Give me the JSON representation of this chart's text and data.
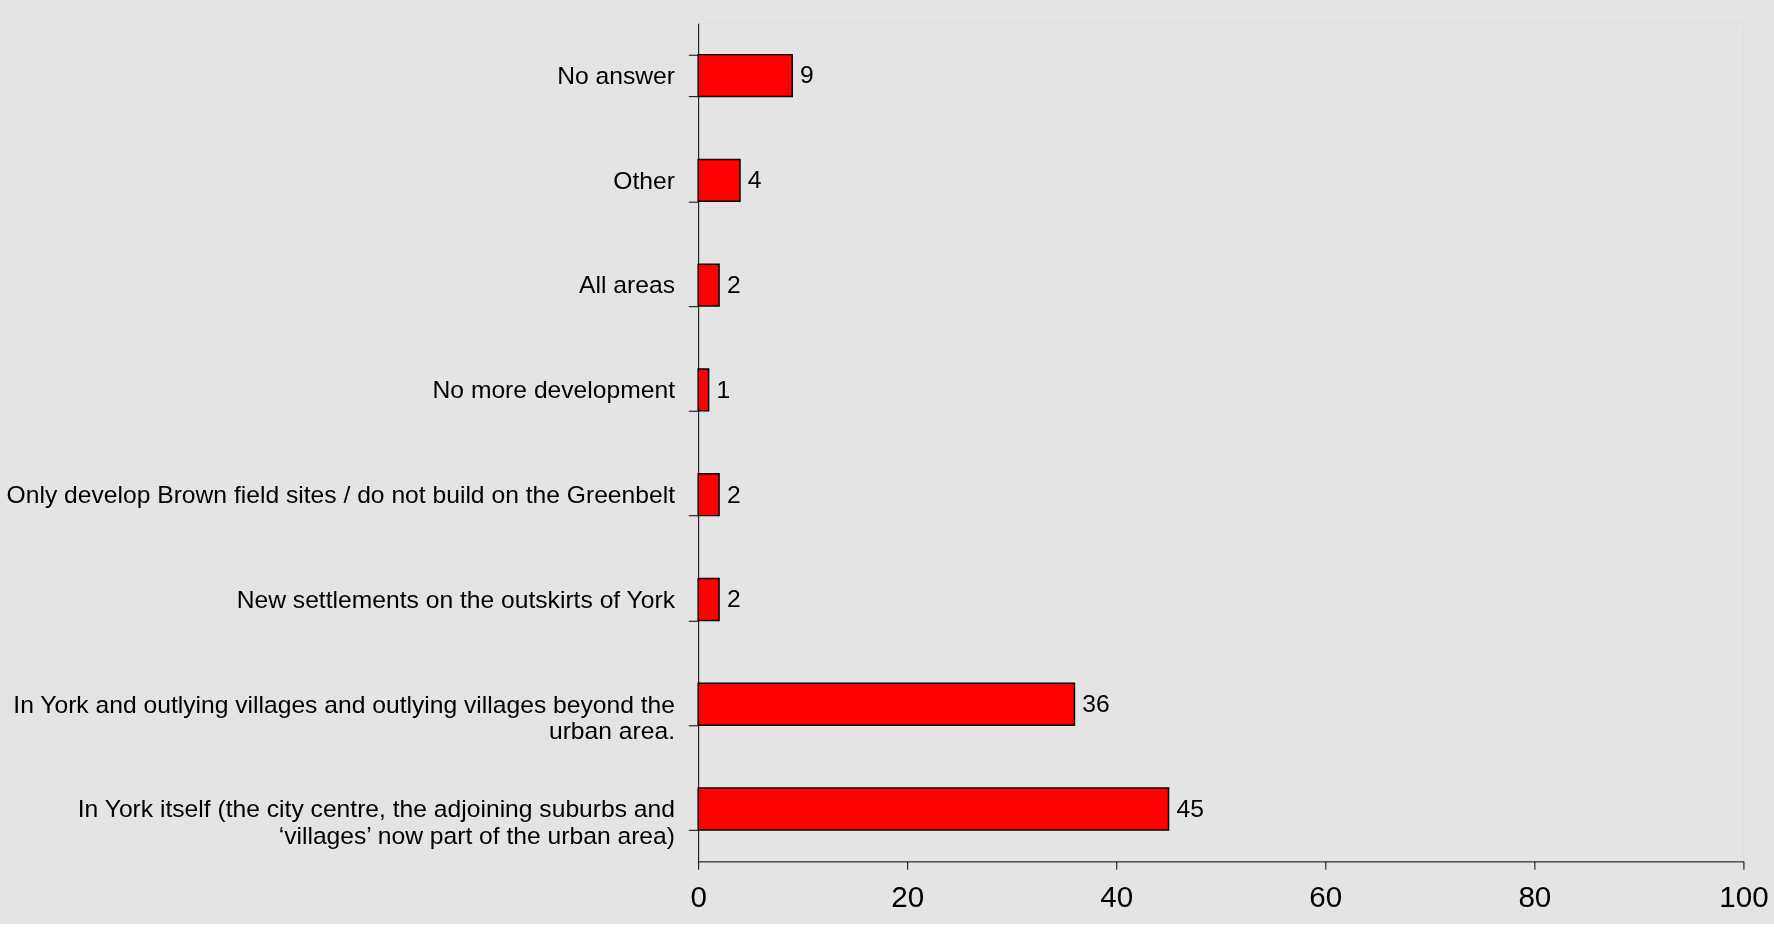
{
  "chart_data": {
    "type": "bar",
    "orientation": "horizontal",
    "categories": [
      "No answer",
      "Other",
      "All areas",
      "No more development",
      "Only develop Brown field sites / do not build on the Greenbelt",
      "New settlements on the outskirts of York",
      "In York and outlying villages and outlying villages beyond the urban area.",
      "In York itself (the city centre, the adjoining suburbs and ‘villages’ now part of the urban area)"
    ],
    "values": [
      9,
      4,
      2,
      1,
      2,
      2,
      36,
      45
    ],
    "color": "#ff0000",
    "xlim": [
      0,
      100
    ],
    "xticks": [
      0,
      20,
      40,
      60,
      80,
      100
    ],
    "data_labels": true,
    "grid": false
  }
}
